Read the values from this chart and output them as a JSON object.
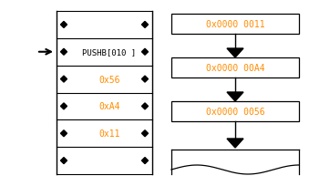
{
  "bg_color": "#ffffff",
  "arrow_color": "#000000",
  "box_edge_color": "#000000",
  "text_color_orange": "#FF8C00",
  "text_color_black": "#000000",
  "left_table_rows": [
    {
      "label": "",
      "is_header": false
    },
    {
      "label": "PUSHB[010 ]",
      "is_header": true
    },
    {
      "label": "0x56",
      "is_header": false
    },
    {
      "label": "0xA4",
      "is_header": false
    },
    {
      "label": "0x11",
      "is_header": false
    },
    {
      "label": "",
      "is_header": false
    }
  ],
  "right_boxes": [
    {
      "label": "0x0000 0011"
    },
    {
      "label": "0x0000 00A4"
    },
    {
      "label": "0x0000 0056"
    }
  ]
}
